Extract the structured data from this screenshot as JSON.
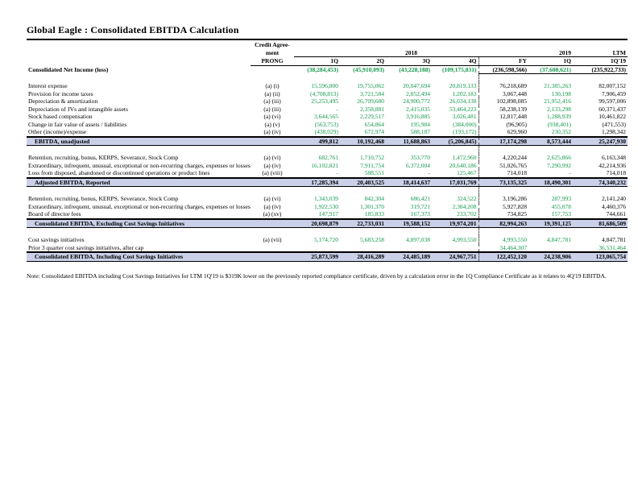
{
  "title": "Global Eagle : Consolidated EBITDA Calculation",
  "colors": {
    "data_green": "#12984a",
    "total_row_highlight": "#cad0e8",
    "text": "#000000"
  },
  "header": {
    "prong_line1": "Credit Agree-",
    "prong_line2": "ment",
    "prong_line3": "PRONG",
    "group_2018": "2018",
    "group_2019": "2019",
    "group_ltm": "LTM",
    "col_1q": "1Q",
    "col_2q": "2Q",
    "col_3q": "3Q",
    "col_4q": "4Q",
    "col_fy": "FY",
    "col_2019_1q": "1Q",
    "col_ltm_1q19": "1Q'19"
  },
  "table": {
    "rows": [
      {
        "type": "net_income",
        "label": "Consolidated Net Income (loss)",
        "prong": "",
        "values": [
          "(38,284,453)",
          "(45,910,093)",
          "(43,228,188)",
          "(109,175,831)",
          "(236,598,566)",
          "(37,608,621)",
          "(235,922,733)"
        ],
        "green": [
          0,
          1,
          2,
          3,
          5
        ],
        "underline": [
          4,
          5,
          6
        ]
      },
      {
        "type": "gap",
        "h": 5
      },
      {
        "type": "detail",
        "label": "Interest expense",
        "prong": "(a) (i)",
        "values": [
          "15,596,800",
          "19,755,062",
          "20,047,694",
          "20,819,133",
          "76,218,689",
          "21,385,263",
          "82,007,152"
        ],
        "green": [
          0,
          1,
          2,
          3,
          5
        ]
      },
      {
        "type": "detail",
        "label": "Provision for income taxes",
        "prong": "(a) (ii)",
        "values": [
          "(4,708,813)",
          "3,721,584",
          "2,852,494",
          "1,202,183",
          "3,067,448",
          "130,198",
          "7,906,459"
        ],
        "green": [
          0,
          1,
          2,
          3,
          5
        ]
      },
      {
        "type": "detail",
        "label": "Depreciation & amortization",
        "prong": "(a) (iii)",
        "values": [
          "25,253,495",
          "26,709,680",
          "24,900,772",
          "26,034,138",
          "102,898,085",
          "21,952,416",
          "99,597,006"
        ],
        "green": [
          0,
          1,
          2,
          3,
          5
        ]
      },
      {
        "type": "detail",
        "label": "Depreciation of JVs and intangible assets",
        "prong": "(a) (iii)",
        "values": [
          "-",
          "2,358,881",
          "2,415,035",
          "53,464,223",
          "58,238,139",
          "2,133,298",
          "60,371,437"
        ],
        "green": [
          0,
          1,
          2,
          3,
          5
        ]
      },
      {
        "type": "detail",
        "label": "Stock based compensation",
        "prong": "(a) (vi)",
        "values": [
          "3,644,565",
          "2,229,517",
          "3,916,885",
          "3,026,481",
          "12,817,448",
          "1,288,939",
          "10,461,822"
        ],
        "green": [
          0,
          1,
          2,
          3,
          5
        ]
      },
      {
        "type": "detail",
        "label": "Change in fair value of assets / liabilities",
        "prong": "(a) (v)",
        "values": [
          "(563,753)",
          "654,864",
          "195,984",
          "(384,000)",
          "(96,905)",
          "(938,401)",
          "(471,553)"
        ],
        "green": [
          0,
          1,
          2,
          3,
          5
        ]
      },
      {
        "type": "detail",
        "label": "Other (income)/expense",
        "prong": "(a) (iv)",
        "values": [
          "(438,029)",
          "672,974",
          "588,187",
          "(193,172)",
          "629,960",
          "230,352",
          "1,298,342"
        ],
        "green": [
          0,
          1,
          2,
          3,
          5
        ]
      },
      {
        "type": "total",
        "label": "EBITDA, unadjusted",
        "prong": "",
        "values": [
          "499,812",
          "10,192,468",
          "11,688,863",
          "(5,206,845)",
          "17,174,298",
          "8,573,444",
          "25,247,930"
        ],
        "green": []
      },
      {
        "type": "gap",
        "h": 10
      },
      {
        "type": "detail",
        "label": "Retention, recruiting, bonus, KERPS, Severance, Stock Comp",
        "prong": "(a) (vi)",
        "values": [
          "682,761",
          "1,710,752",
          "353,770",
          "1,472,960",
          "4,220,244",
          "2,625,866",
          "6,163,348"
        ],
        "green": [
          0,
          1,
          2,
          3,
          5
        ]
      },
      {
        "type": "detail",
        "label": "Extraordinary, infrequent, unusual, exceptional or non-recurring charges, expenses or losses",
        "prong": "(a) (iv)",
        "values": [
          "16,102,821",
          "7,911,754",
          "6,372,004",
          "20,640,186",
          "51,026,765",
          "7,290,992",
          "42,214,936"
        ],
        "green": [
          0,
          1,
          2,
          3,
          5
        ]
      },
      {
        "type": "detail",
        "label": "Loss from disposed, abandoned or discontinued operations or product lines",
        "prong": "(a) (viii)",
        "values": [
          "-",
          "588,551",
          "-",
          "125,467",
          "714,018",
          "-",
          "714,018"
        ],
        "green": [
          0,
          1,
          2,
          3,
          5
        ]
      },
      {
        "type": "total",
        "label": "Adjusted EBITDA, Reported",
        "prong": "",
        "values": [
          "17,285,394",
          "20,403,525",
          "18,414,637",
          "17,031,769",
          "73,135,325",
          "18,490,301",
          "74,340,232"
        ],
        "green": []
      },
      {
        "type": "gap",
        "h": 10
      },
      {
        "type": "detail",
        "label": "Retention, recruiting, bonus, KERPS, Severance, Stock Comp",
        "prong": "(a) (vi)",
        "values": [
          "1,343,039",
          "842,304",
          "686,421",
          "324,522",
          "3,196,286",
          "287,993",
          "2,141,240"
        ],
        "green": [
          0,
          1,
          2,
          3,
          5
        ]
      },
      {
        "type": "detail",
        "label": "Extraordinary, infrequent, unusual, exceptional or non-recurring charges, expenses or losses",
        "prong": "(a) (iv)",
        "values": [
          "1,922,530",
          "1,301,370",
          "319,721",
          "2,384,208",
          "5,927,828",
          "455,078",
          "4,460,376"
        ],
        "green": [
          0,
          1,
          2,
          3,
          5
        ]
      },
      {
        "type": "detail",
        "label": "Board of director fees",
        "prong": "(a) (xv)",
        "values": [
          "147,917",
          "185,833",
          "167,373",
          "233,702",
          "734,825",
          "157,753",
          "744,661"
        ],
        "green": [
          0,
          1,
          2,
          3,
          5
        ]
      },
      {
        "type": "total",
        "label": "Consolidated EBITDA, Excluding Cost Savings Initiatives",
        "prong": "",
        "values": [
          "20,698,879",
          "22,733,031",
          "19,588,152",
          "19,974,201",
          "82,994,263",
          "19,391,125",
          "81,686,509"
        ],
        "green": []
      },
      {
        "type": "gap",
        "h": 8
      },
      {
        "type": "detail",
        "label": "Cost savings initiatives",
        "prong": "(a) (vii)",
        "values": [
          "5,174,720",
          "5,683,258",
          "4,897,038",
          "4,993,550",
          "4,993,550",
          "4,847,781",
          "4,847,781"
        ],
        "green": [
          0,
          1,
          2,
          3,
          4,
          5
        ]
      },
      {
        "type": "detail",
        "label": "Prior 3 quarter cost savings initiatives, after cap",
        "prong": "",
        "values": [
          "",
          "",
          "",
          "",
          "34,464,307",
          "",
          "36,531,464"
        ],
        "green": [
          4,
          6
        ]
      },
      {
        "type": "total",
        "label": "Consolidated EBITDA, Including Cost Savings Initiatives",
        "prong": "",
        "values": [
          "25,873,599",
          "28,416,289",
          "24,485,189",
          "24,967,751",
          "122,452,120",
          "24,238,906",
          "123,065,754"
        ],
        "green": []
      }
    ]
  },
  "note": "Note: Consolidated EBITDA including Cost Savings Initiatives for LTM 1Q'19 is $319K lower on the previously reported compliance certificate, driven by a calculation error in the 1Q Compliance Certificate as it relates to 4Q'19 EBITDA."
}
